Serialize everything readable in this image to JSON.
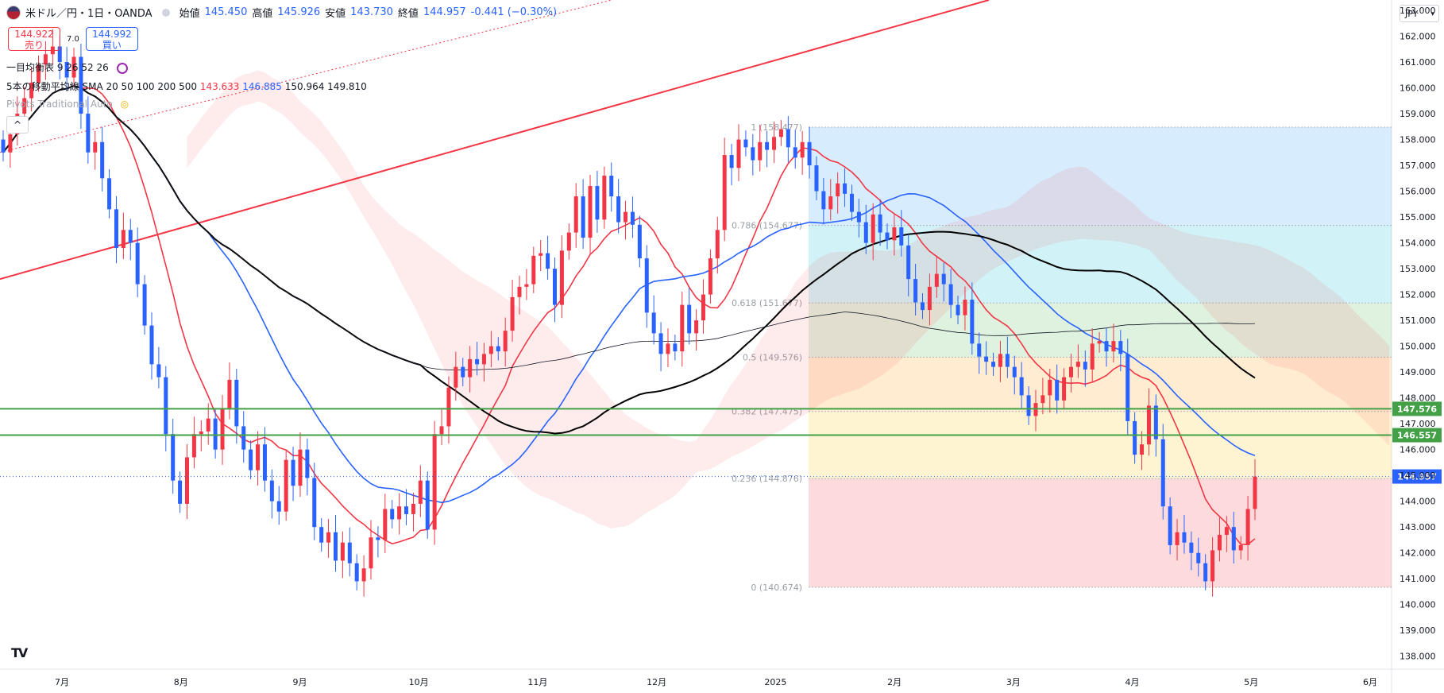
{
  "header": {
    "symbol": "米ドル／円・1日・OANDA",
    "open_label": "始値",
    "open": "145.450",
    "high_label": "高値",
    "high": "145.926",
    "low_label": "安値",
    "low": "143.730",
    "close_label": "終値",
    "close": "144.957",
    "change": "-0.441 (−0.30%)"
  },
  "trade": {
    "sell_price": "144.922",
    "sell_label": "売り",
    "spread": "7.0",
    "buy_price": "144.992",
    "buy_label": "買い"
  },
  "indicators": {
    "ichimoku": "一目均衡表",
    "ichimoku_params": "9 26 52 26",
    "ma_label": "5本の移動平均線",
    "ma_params": "SMA 20 50 100 200 500",
    "ma_values": [
      "143.633",
      "146.885",
      "150.964",
      "149.810"
    ],
    "pivots": "Pivots Traditional Auto"
  },
  "toolbar": {
    "collapse": "^",
    "currency": "JPY"
  },
  "colors": {
    "bull": "#f23645",
    "bear": "#2962ff",
    "sma20": "#f23645",
    "sma50": "#2962ff",
    "sma100": "#000000",
    "sma200": "#131722",
    "hline": "#43a047"
  },
  "chart_data": {
    "type": "candlestick",
    "y_ticks": [
      "163.000",
      "162.000",
      "161.000",
      "160.000",
      "159.000",
      "158.000",
      "157.000",
      "156.000",
      "155.000",
      "154.000",
      "153.000",
      "152.000",
      "151.000",
      "150.000",
      "149.000",
      "148.000",
      "147.000",
      "146.000",
      "145.000",
      "144.000",
      "143.000",
      "142.000",
      "141.000",
      "140.000",
      "139.000",
      "138.000"
    ],
    "ylim": [
      137.5,
      163.4
    ],
    "x_ticks": [
      "7月",
      "8月",
      "9月",
      "10月",
      "11月",
      "12月",
      "2025",
      "2月",
      "3月",
      "4月",
      "5月",
      "6月"
    ],
    "current_price": "144.957",
    "horizontal_lines": [
      {
        "value": 147.576,
        "label": "147.576"
      },
      {
        "value": 146.557,
        "label": "146.557"
      }
    ],
    "fibonacci": [
      {
        "level": "1",
        "price": 158.477,
        "label": "1 (158.477)"
      },
      {
        "level": "0.786",
        "price": 154.677,
        "label": "0.786 (154.677)"
      },
      {
        "level": "0.618",
        "price": 151.677,
        "label": "0.618 (151.677)"
      },
      {
        "level": "0.5",
        "price": 149.576,
        "label": "0.5 (149.576)"
      },
      {
        "level": "0.382",
        "price": 147.475,
        "label": "0.382 (147.475)"
      },
      {
        "level": "0.236",
        "price": 144.876,
        "label": "0.236 (144.876)"
      },
      {
        "level": "0",
        "price": 140.674,
        "label": "0 (140.674)"
      }
    ],
    "close_series": [
      157.5,
      158.2,
      159.0,
      159.6,
      160.2,
      160.9,
      161.3,
      161.6,
      161.0,
      160.4,
      161.2,
      159.0,
      157.5,
      157.9,
      156.5,
      155.3,
      153.8,
      154.5,
      154.0,
      152.4,
      150.8,
      149.3,
      148.8,
      146.6,
      144.8,
      143.9,
      145.7,
      146.6,
      146.7,
      147.2,
      146.0,
      147.6,
      148.7,
      146.9,
      146.0,
      145.2,
      146.2,
      144.8,
      144.0,
      143.6,
      145.6,
      144.6,
      146.0,
      144.9,
      143.0,
      142.4,
      142.8,
      141.7,
      142.4,
      141.6,
      140.9,
      141.4,
      142.6,
      142.5,
      143.7,
      143.3,
      143.8,
      143.5,
      143.9,
      144.8,
      142.9,
      146.6,
      146.9,
      148.4,
      149.2,
      148.8,
      149.5,
      149.3,
      149.7,
      150.0,
      149.8,
      150.6,
      151.9,
      152.3,
      152.4,
      153.5,
      153.6,
      153.0,
      151.6,
      153.7,
      154.4,
      155.8,
      154.2,
      156.2,
      154.9,
      156.6,
      155.8,
      154.8,
      155.2,
      154.7,
      153.4,
      151.3,
      150.5,
      149.7,
      150.1,
      149.8,
      151.6,
      150.5,
      151.0,
      152.0,
      153.4,
      154.5,
      157.4,
      156.9,
      158.0,
      157.7,
      157.2,
      157.9,
      157.6,
      158.1,
      158.4,
      157.7,
      157.3,
      157.9,
      157.0,
      156.0,
      155.3,
      155.8,
      156.3,
      155.9,
      155.2,
      154.8,
      154.0,
      155.1,
      154.4,
      154.1,
      154.6,
      153.9,
      152.6,
      151.7,
      151.4,
      152.3,
      152.8,
      152.4,
      151.6,
      151.2,
      151.8,
      150.1,
      149.6,
      149.4,
      149.2,
      149.7,
      149.2,
      148.8,
      148.1,
      147.3,
      147.8,
      148.1,
      148.7,
      147.9,
      148.8,
      149.2,
      149.4,
      149.1,
      150.1,
      150.2,
      149.8,
      150.2,
      149.7,
      147.1,
      145.8,
      146.2,
      147.7,
      146.4,
      143.8,
      142.3,
      142.8,
      142.4,
      142.0,
      141.6,
      140.9,
      142.1,
      142.7,
      143.0,
      142.1,
      142.3,
      143.7,
      144.957
    ]
  }
}
